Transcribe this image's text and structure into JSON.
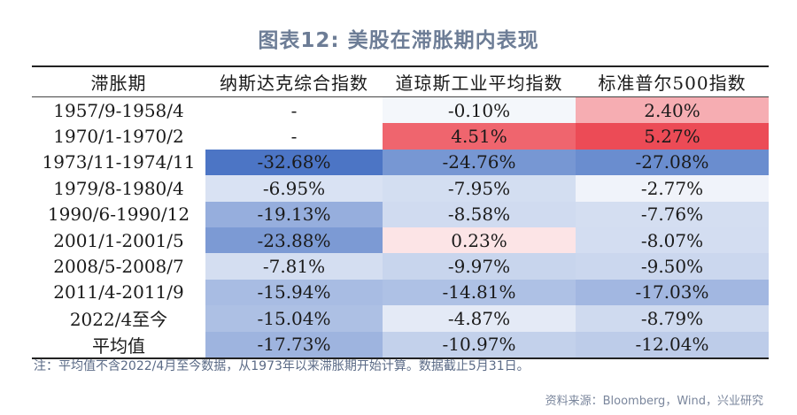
{
  "title": "图表12: 美股在滞胀期内表现",
  "note": "注：平均值不含2022/4月至今数据，从1973年以来滞胀期开始计算。数据截止5月31日。",
  "source": "资料来源：Bloomberg，Wind，兴业研究",
  "chart_data": {
    "type": "table",
    "columns": [
      "滞胀期",
      "纳斯达克综合指数",
      "道琼斯工业平均指数",
      "标准普尔500指数"
    ],
    "rows": [
      {
        "label": "1957/9-1958/4",
        "cells": [
          "-",
          "-0.10%",
          "2.40%"
        ],
        "values": [
          null,
          -0.1,
          2.4
        ]
      },
      {
        "label": "1970/1-1970/2",
        "cells": [
          "-",
          "4.51%",
          "5.27%"
        ],
        "values": [
          null,
          4.51,
          5.27
        ]
      },
      {
        "label": "1973/11-1974/11",
        "cells": [
          "-32.68%",
          "-24.76%",
          "-27.08%"
        ],
        "values": [
          -32.68,
          -24.76,
          -27.08
        ]
      },
      {
        "label": "1979/8-1980/4",
        "cells": [
          "-6.95%",
          "-7.95%",
          "-2.77%"
        ],
        "values": [
          -6.95,
          -7.95,
          -2.77
        ]
      },
      {
        "label": "1990/6-1990/12",
        "cells": [
          "-19.13%",
          "-8.58%",
          "-7.76%"
        ],
        "values": [
          -19.13,
          -8.58,
          -7.76
        ]
      },
      {
        "label": "2001/1-2001/5",
        "cells": [
          "-23.88%",
          "0.23%",
          "-8.07%"
        ],
        "values": [
          -23.88,
          0.23,
          -8.07
        ]
      },
      {
        "label": "2008/5-2008/7",
        "cells": [
          "-7.81%",
          "-9.97%",
          "-9.50%"
        ],
        "values": [
          -7.81,
          -9.97,
          -9.5
        ]
      },
      {
        "label": "2011/4-2011/9",
        "cells": [
          "-15.94%",
          "-14.81%",
          "-17.03%"
        ],
        "values": [
          -15.94,
          -14.81,
          -17.03
        ]
      },
      {
        "label": "2022/4至今",
        "cells": [
          "-15.04%",
          "-4.87%",
          "-8.79%"
        ],
        "values": [
          -15.04,
          -4.87,
          -8.79
        ]
      },
      {
        "label": "平均值",
        "cells": [
          "-17.73%",
          "-10.97%",
          "-12.04%"
        ],
        "values": [
          -17.73,
          -10.97,
          -12.04
        ]
      }
    ],
    "heatmap_colors": {
      "negative": "#4a74c4",
      "neutral": "#ffffff",
      "positive": "#ec4a55"
    }
  }
}
